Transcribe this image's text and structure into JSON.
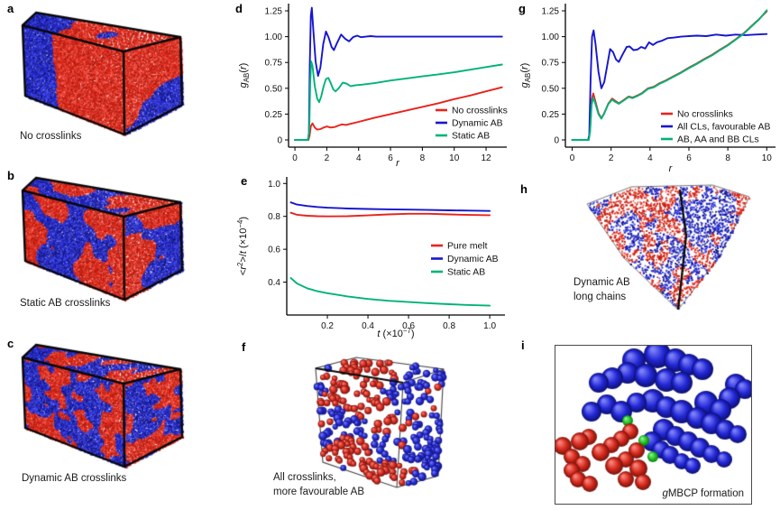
{
  "colors": {
    "red": "#e8231c",
    "blue": "#1616cf",
    "green": "#00b377",
    "axis": "#000000"
  },
  "panels": {
    "a": {
      "letter": "a",
      "caption": "No crosslinks"
    },
    "b": {
      "letter": "b",
      "caption": "Static AB crosslinks"
    },
    "c": {
      "letter": "c",
      "caption": "Dynamic AB crosslinks"
    },
    "d": {
      "letter": "d"
    },
    "e": {
      "letter": "e"
    },
    "f": {
      "letter": "f",
      "caption": [
        "All crosslinks,",
        "more favourable AB"
      ]
    },
    "g": {
      "letter": "g"
    },
    "h": {
      "letter": "h",
      "caption": [
        "Dynamic AB",
        "long chains"
      ]
    },
    "i": {
      "letter": "i",
      "caption_italic": "g",
      "caption": "MBCP formation"
    }
  },
  "chart_data": [
    {
      "id": "d",
      "type": "line",
      "title": "",
      "xlabel": "*r*",
      "ylabel": "*g*_{AB}(*r*)",
      "xlim": [
        -0.4,
        13.3
      ],
      "ylim": [
        -0.07,
        1.32
      ],
      "xticks": [
        0,
        2,
        4,
        6,
        8,
        10,
        12
      ],
      "xtick_labels": [
        "0",
        "2",
        "4",
        "6",
        "8",
        "10",
        "12"
      ],
      "yticks": [
        0,
        0.25,
        0.5,
        0.75,
        1,
        1.25
      ],
      "ytick_labels": [
        "0",
        "0.25",
        "0.50",
        "0.75",
        "1.00",
        "1.25"
      ],
      "grid": false,
      "legend_position": "bottom-right",
      "series": [
        {
          "name": "No crosslinks",
          "color": "red",
          "x": [
            0,
            0.85,
            0.92,
            1.0,
            1.1,
            1.25,
            1.4,
            1.6,
            1.8,
            2.0,
            2.25,
            2.5,
            2.75,
            2.95,
            3.2,
            3.6,
            4.0,
            4.5,
            5.0,
            6.0,
            7.0,
            8.0,
            9.0,
            10.0,
            11.0,
            12.0,
            13.0
          ],
          "y": [
            0,
            0,
            0.04,
            0.13,
            0.16,
            0.12,
            0.1,
            0.105,
            0.12,
            0.13,
            0.12,
            0.125,
            0.14,
            0.15,
            0.145,
            0.16,
            0.175,
            0.195,
            0.215,
            0.25,
            0.285,
            0.32,
            0.355,
            0.395,
            0.43,
            0.47,
            0.51
          ]
        },
        {
          "name": "Dynamic AB",
          "color": "blue",
          "x": [
            0,
            0.82,
            0.88,
            0.93,
            1.0,
            1.06,
            1.16,
            1.3,
            1.45,
            1.6,
            1.78,
            1.95,
            2.12,
            2.3,
            2.45,
            2.62,
            2.9,
            3.15,
            3.4,
            3.65,
            3.9,
            4.15,
            4.45,
            4.75,
            5.1,
            5.6,
            6.5,
            8,
            10,
            13
          ],
          "y": [
            0,
            0,
            0.07,
            0.7,
            1.2,
            1.28,
            1.05,
            0.76,
            0.62,
            0.7,
            0.93,
            1.05,
            0.99,
            0.9,
            0.87,
            0.93,
            1.02,
            0.98,
            0.955,
            0.995,
            1.01,
            0.995,
            1.0,
            1.005,
            1.0,
            1.0,
            1.0,
            1.0,
            1.0,
            1.0
          ]
        },
        {
          "name": "Static AB",
          "color": "green",
          "x": [
            0,
            0.82,
            0.9,
            0.96,
            1.02,
            1.1,
            1.25,
            1.4,
            1.52,
            1.65,
            1.8,
            1.95,
            2.1,
            2.25,
            2.4,
            2.55,
            2.75,
            3.0,
            3.25,
            3.5,
            3.8,
            4.2,
            5,
            6,
            7,
            8,
            9,
            10,
            11,
            12,
            13
          ],
          "y": [
            0,
            0,
            0.1,
            0.55,
            0.76,
            0.72,
            0.52,
            0.4,
            0.365,
            0.42,
            0.52,
            0.59,
            0.6,
            0.55,
            0.49,
            0.47,
            0.5,
            0.555,
            0.545,
            0.52,
            0.53,
            0.535,
            0.55,
            0.575,
            0.595,
            0.615,
            0.635,
            0.655,
            0.68,
            0.705,
            0.73
          ]
        }
      ]
    },
    {
      "id": "e",
      "type": "line",
      "title": "",
      "xlabel": "*t* (×10^{−7})",
      "ylabel": "<*r*^{2}>/*t* (×10^{−4})",
      "xlim": [
        0,
        1.075
      ],
      "ylim": [
        0.2,
        1.04
      ],
      "xticks": [
        0.2,
        0.4,
        0.6,
        0.8,
        1.0
      ],
      "xtick_labels": [
        "0.2",
        "0.4",
        "0.6",
        "0.8",
        "1.0"
      ],
      "yticks": [
        0.4,
        0.6,
        0.8,
        1.0
      ],
      "ytick_labels": [
        "0.4",
        "0.6",
        "0.8",
        "1.0"
      ],
      "grid": false,
      "legend_position": "middle-right",
      "series": [
        {
          "name": "Pure melt",
          "color": "red",
          "x": [
            0.02,
            0.05,
            0.1,
            0.15,
            0.2,
            0.3,
            0.4,
            0.5,
            0.6,
            0.7,
            0.8,
            0.9,
            1.0
          ],
          "y": [
            0.822,
            0.81,
            0.804,
            0.801,
            0.8,
            0.801,
            0.806,
            0.812,
            0.816,
            0.816,
            0.812,
            0.809,
            0.807
          ]
        },
        {
          "name": "Dynamic AB",
          "color": "blue",
          "x": [
            0.02,
            0.05,
            0.1,
            0.15,
            0.2,
            0.3,
            0.4,
            0.5,
            0.6,
            0.7,
            0.8,
            0.9,
            1.0
          ],
          "y": [
            0.885,
            0.872,
            0.863,
            0.857,
            0.853,
            0.848,
            0.845,
            0.843,
            0.841,
            0.839,
            0.837,
            0.835,
            0.833
          ]
        },
        {
          "name": "Static AB",
          "color": "green",
          "x": [
            0.02,
            0.05,
            0.1,
            0.15,
            0.2,
            0.3,
            0.4,
            0.5,
            0.6,
            0.7,
            0.8,
            0.9,
            1.0
          ],
          "y": [
            0.425,
            0.392,
            0.363,
            0.345,
            0.333,
            0.313,
            0.298,
            0.287,
            0.279,
            0.272,
            0.266,
            0.261,
            0.257
          ]
        }
      ]
    },
    {
      "id": "g",
      "type": "line",
      "title": "",
      "xlabel": "*r*",
      "ylabel": "*g*_{AB}(*r*)",
      "xlim": [
        -0.35,
        10.45
      ],
      "ylim": [
        -0.07,
        1.32
      ],
      "xticks": [
        0,
        2,
        4,
        6,
        8,
        10
      ],
      "xtick_labels": [
        "0",
        "2",
        "4",
        "6",
        "8",
        "10"
      ],
      "yticks": [
        0,
        0.25,
        0.5,
        0.75,
        1,
        1.25
      ],
      "ytick_labels": [
        "0",
        "0.25",
        "0.50",
        "0.75",
        "1.00",
        "1.25"
      ],
      "grid": false,
      "legend_position": "bottom-right",
      "series": [
        {
          "name": "No crosslinks",
          "color": "red",
          "x": [
            0,
            0.85,
            0.92,
            1.0,
            1.08,
            1.2,
            1.35,
            1.5,
            1.65,
            1.85,
            2.05,
            2.2,
            2.4,
            2.6,
            2.9,
            3.1,
            3.35,
            3.6,
            3.9,
            4.2,
            4.5,
            4.8,
            5.2,
            5.6,
            6.0,
            6.4,
            6.8,
            7.2,
            7.6,
            8.0,
            8.4,
            8.8,
            9.2,
            9.6,
            10.0
          ],
          "y": [
            0,
            0,
            0.1,
            0.38,
            0.45,
            0.37,
            0.26,
            0.21,
            0.26,
            0.35,
            0.4,
            0.38,
            0.355,
            0.38,
            0.42,
            0.41,
            0.43,
            0.455,
            0.5,
            0.515,
            0.55,
            0.575,
            0.615,
            0.655,
            0.7,
            0.74,
            0.785,
            0.825,
            0.875,
            0.92,
            0.975,
            1.03,
            1.1,
            1.17,
            1.245
          ]
        },
        {
          "name": "All CLs, favourable AB",
          "color": "blue",
          "x": [
            0,
            0.82,
            0.88,
            0.95,
            1.02,
            1.1,
            1.2,
            1.35,
            1.5,
            1.65,
            1.8,
            1.95,
            2.1,
            2.25,
            2.4,
            2.6,
            2.8,
            2.95,
            3.15,
            3.35,
            3.55,
            3.75,
            3.95,
            4.15,
            4.35,
            4.6,
            4.9,
            5.2,
            5.6,
            6.0,
            6.4,
            6.9,
            7.4,
            7.9,
            8.4,
            8.9,
            9.4,
            10.0
          ],
          "y": [
            0,
            0,
            0.05,
            0.6,
            1.0,
            1.06,
            0.93,
            0.66,
            0.5,
            0.56,
            0.72,
            0.88,
            0.85,
            0.78,
            0.755,
            0.83,
            0.9,
            0.905,
            0.87,
            0.875,
            0.9,
            0.885,
            0.945,
            0.92,
            0.945,
            0.96,
            0.985,
            0.99,
            1.0,
            1.005,
            1.01,
            1.005,
            1.02,
            1.01,
            1.02,
            1.015,
            1.02,
            1.025
          ]
        },
        {
          "name": "AB, AA and BB CLs",
          "color": "green",
          "x": [
            0,
            0.85,
            0.92,
            1.0,
            1.08,
            1.2,
            1.35,
            1.5,
            1.65,
            1.85,
            2.05,
            2.2,
            2.4,
            2.6,
            2.9,
            3.1,
            3.35,
            3.6,
            3.9,
            4.2,
            4.5,
            4.8,
            5.2,
            5.6,
            6.0,
            6.4,
            6.8,
            7.2,
            7.6,
            8.0,
            8.4,
            8.8,
            9.2,
            9.6,
            10.0
          ],
          "y": [
            0,
            0,
            0.08,
            0.34,
            0.41,
            0.345,
            0.25,
            0.205,
            0.255,
            0.345,
            0.39,
            0.37,
            0.35,
            0.375,
            0.415,
            0.405,
            0.425,
            0.45,
            0.495,
            0.51,
            0.545,
            0.57,
            0.61,
            0.65,
            0.695,
            0.735,
            0.78,
            0.82,
            0.87,
            0.915,
            0.97,
            1.025,
            1.095,
            1.165,
            1.255
          ]
        }
      ]
    }
  ]
}
